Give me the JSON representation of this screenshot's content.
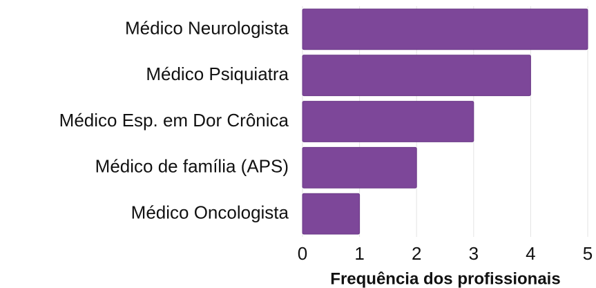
{
  "chart_data": {
    "type": "bar",
    "orientation": "horizontal",
    "x_label": "Frequência dos profissionais",
    "categories": [
      "Médico Neurologista",
      "Médico Psiquiatra",
      "Médico Esp. em Dor Crônica",
      "Médico de família (APS)",
      "Médico Oncologista"
    ],
    "values": [
      5,
      4,
      3,
      2,
      1
    ],
    "color": "#7d4799",
    "xlim": [
      0,
      5
    ],
    "xticks": [
      0,
      1,
      2,
      3,
      4,
      5
    ],
    "grid": true
  }
}
